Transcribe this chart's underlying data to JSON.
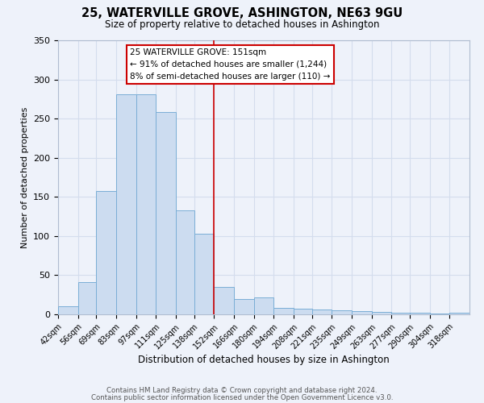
{
  "title": "25, WATERVILLE GROVE, ASHINGTON, NE63 9GU",
  "subtitle": "Size of property relative to detached houses in Ashington",
  "xlabel": "Distribution of detached houses by size in Ashington",
  "ylabel": "Number of detached properties",
  "bin_labels": [
    "42sqm",
    "56sqm",
    "69sqm",
    "83sqm",
    "97sqm",
    "111sqm",
    "125sqm",
    "138sqm",
    "152sqm",
    "166sqm",
    "180sqm",
    "194sqm",
    "208sqm",
    "221sqm",
    "235sqm",
    "249sqm",
    "263sqm",
    "277sqm",
    "290sqm",
    "304sqm",
    "318sqm"
  ],
  "bar_heights": [
    10,
    41,
    157,
    281,
    281,
    258,
    133,
    103,
    35,
    20,
    22,
    8,
    7,
    6,
    5,
    4,
    3,
    2,
    2,
    1,
    2
  ],
  "bar_color": "#ccdcf0",
  "bar_edge_color": "#7aaed6",
  "bin_edges": [
    42,
    56,
    69,
    83,
    97,
    111,
    125,
    138,
    152,
    166,
    180,
    194,
    208,
    221,
    235,
    249,
    263,
    277,
    290,
    304,
    318,
    332
  ],
  "vline_x": 152,
  "vline_color": "#cc0000",
  "annotation_title": "25 WATERVILLE GROVE: 151sqm",
  "annotation_line1": "← 91% of detached houses are smaller (1,244)",
  "annotation_line2": "8% of semi-detached houses are larger (110) →",
  "annotation_box_color": "#ffffff",
  "annotation_box_edge": "#cc0000",
  "grid_color": "#d4dded",
  "bg_color": "#eef2fa",
  "footer1": "Contains HM Land Registry data © Crown copyright and database right 2024.",
  "footer2": "Contains public sector information licensed under the Open Government Licence v3.0.",
  "ylim": [
    0,
    350
  ],
  "yticks": [
    0,
    50,
    100,
    150,
    200,
    250,
    300,
    350
  ]
}
